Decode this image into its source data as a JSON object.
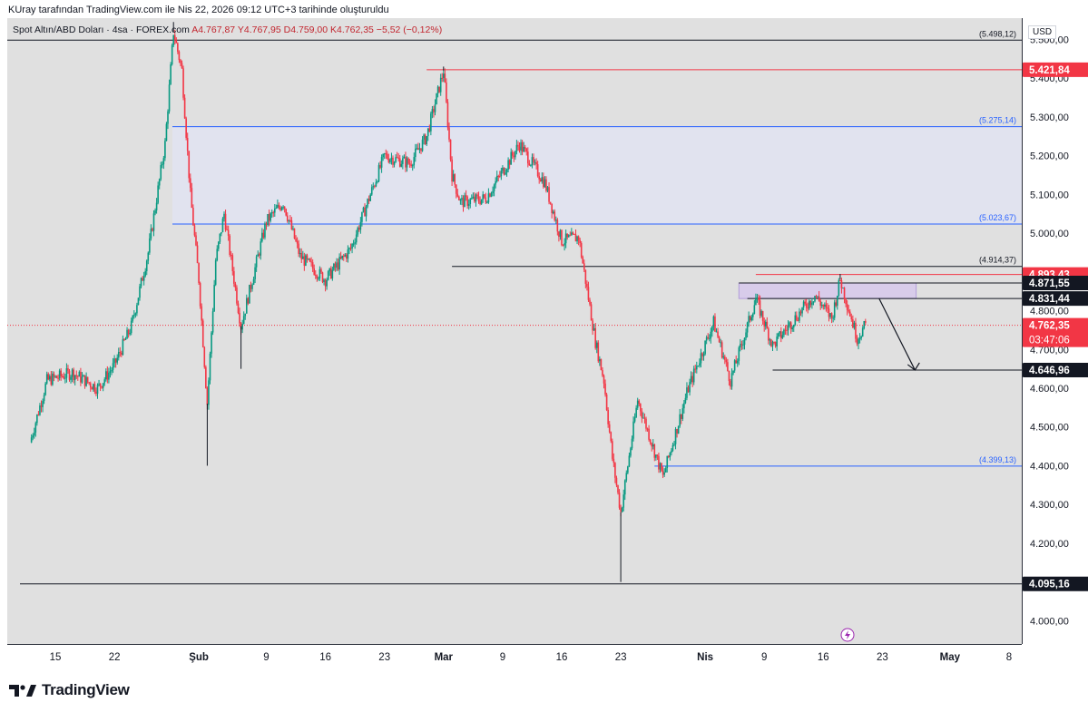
{
  "caption": "KUray tarafından TradingView.com ile Nis 22, 2026 09:12 UTC+3 tarihinde oluşturuldu",
  "symbol": {
    "name": "Spot Altın/ABD Doları · 4sa · FOREX.com",
    "ohlc": "A4.767,87  Y4.767,95  D4.759,00  K4.762,35  −5,52  (−0,12%)"
  },
  "currency": "USD",
  "brand": {
    "name": "TradingView"
  },
  "colors": {
    "bull": "#089981",
    "bear": "#f23645",
    "fib": "#2962ff",
    "bg": "#e0e0e0",
    "zone": "#e1e3ef",
    "box": "#d8ccea"
  },
  "chart_data": {
    "type": "candlestick",
    "title": "Spot Altın/ABD Doları · 4sa",
    "ylim": [
      3940,
      5555
    ],
    "y_ticks": [
      "4.000,00",
      "4.100,00",
      "4.200,00",
      "4.300,00",
      "4.400,00",
      "4.500,00",
      "4.600,00",
      "4.700,00",
      "4.800,00",
      "4.900,00",
      "5.000,00",
      "5.100,00",
      "5.200,00",
      "5.300,00",
      "5.400,00",
      "5.500,00"
    ],
    "x_ticks": [
      "15",
      "22",
      "Şub",
      "9",
      "16",
      "23",
      "Mar",
      "9",
      "16",
      "23",
      "Nis",
      "9",
      "16",
      "23",
      "May",
      "8"
    ],
    "price_path": [
      {
        "t": "Oca 12",
        "p": 4460
      },
      {
        "t": "Oca 14",
        "p": 4620
      },
      {
        "t": "Oca 17",
        "p": 4640
      },
      {
        "t": "Oca 20",
        "p": 4600
      },
      {
        "t": "Oca 22",
        "p": 4660
      },
      {
        "t": "Oca 24",
        "p": 4760
      },
      {
        "t": "Oca 26",
        "p": 4950
      },
      {
        "t": "Oca 28",
        "p": 5230
      },
      {
        "t": "Oca 29",
        "p": 5520
      },
      {
        "t": "Oca 30",
        "p": 5420
      },
      {
        "t": "Oca 31",
        "p": 5100
      },
      {
        "t": "Şub 1",
        "p": 4880
      },
      {
        "t": "Şub 2",
        "p": 4560
      },
      {
        "t": "Şub 3",
        "p": 4930
      },
      {
        "t": "Şub 4",
        "p": 5050
      },
      {
        "t": "Şub 6",
        "p": 4760
      },
      {
        "t": "Şub 9",
        "p": 5030
      },
      {
        "t": "Şub 11",
        "p": 5080
      },
      {
        "t": "Şub 13",
        "p": 4940
      },
      {
        "t": "Şub 16",
        "p": 4880
      },
      {
        "t": "Şub 19",
        "p": 4960
      },
      {
        "t": "Şub 23",
        "p": 5200
      },
      {
        "t": "Şub 26",
        "p": 5180
      },
      {
        "t": "Şub 28",
        "p": 5250
      },
      {
        "t": "Mar 2",
        "p": 5420
      },
      {
        "t": "Mar 3",
        "p": 5150
      },
      {
        "t": "Mar 4",
        "p": 5080
      },
      {
        "t": "Mar 7",
        "p": 5090
      },
      {
        "t": "Mar 11",
        "p": 5230
      },
      {
        "t": "Mar 14",
        "p": 5130
      },
      {
        "t": "Mar 16",
        "p": 4980
      },
      {
        "t": "Mar 18",
        "p": 4990
      },
      {
        "t": "Mar 20",
        "p": 4720
      },
      {
        "t": "Mar 21",
        "p": 4620
      },
      {
        "t": "Mar 22",
        "p": 4420
      },
      {
        "t": "Mar 23",
        "p": 4280
      },
      {
        "t": "Mar 25",
        "p": 4570
      },
      {
        "t": "Mar 28",
        "p": 4370
      },
      {
        "t": "Mar 31",
        "p": 4600
      },
      {
        "t": "Nis 3",
        "p": 4770
      },
      {
        "t": "Nis 5",
        "p": 4620
      },
      {
        "t": "Nis 8",
        "p": 4830
      },
      {
        "t": "Nis 10",
        "p": 4710
      },
      {
        "t": "Nis 13",
        "p": 4790
      },
      {
        "t": "Nis 15",
        "p": 4840
      },
      {
        "t": "Nis 17",
        "p": 4780
      },
      {
        "t": "Nis 18",
        "p": 4880
      },
      {
        "t": "Nis 20",
        "p": 4730
      },
      {
        "t": "Nis 21",
        "p": 4762
      }
    ],
    "horizontal_levels": [
      {
        "value": 5498.12,
        "label": "(5.498,12)",
        "style": "black"
      },
      {
        "value": 5421.84,
        "label": "5.421,84",
        "style": "red-tag"
      },
      {
        "value": 5275.14,
        "label": "(5.275,14)",
        "style": "fib"
      },
      {
        "value": 5023.67,
        "label": "(5.023,67)",
        "style": "fib"
      },
      {
        "value": 4914.37,
        "label": "(4.914,37)",
        "style": "black"
      },
      {
        "value": 4893.43,
        "label": "4.893,43",
        "style": "red-tag"
      },
      {
        "value": 4871.55,
        "label": "4.871,55",
        "style": "black-tag"
      },
      {
        "value": 4831.44,
        "label": "4.831,44",
        "style": "black-tag"
      },
      {
        "value": 4762.35,
        "label": "4.762,35",
        "style": "current"
      },
      {
        "value": 4646.96,
        "label": "4.646,96",
        "style": "black-tag"
      },
      {
        "value": 4399.13,
        "label": "(4.399,13)",
        "style": "fib"
      },
      {
        "value": 4095.16,
        "label": "4.095,16",
        "style": "black-tag"
      }
    ],
    "countdown": "03:47:06",
    "zone": {
      "from": 5023.67,
      "to": 5275.14
    },
    "box": {
      "from": 4831.44,
      "to": 4871.55
    },
    "projection": {
      "from": 4831.44,
      "to": 4646.96
    }
  }
}
